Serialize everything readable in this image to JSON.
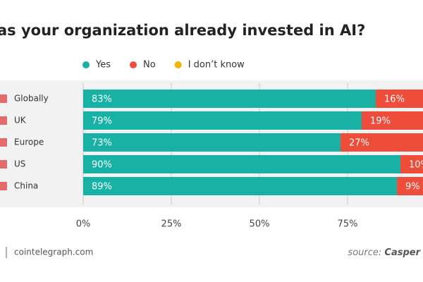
{
  "chart_data": {
    "type": "stacked-bar-horizontal",
    "title": "as your organization already invested in AI?",
    "categories": [
      "Globally",
      "UK",
      "Europe",
      "US",
      "China"
    ],
    "series": [
      {
        "name": "Yes",
        "color": "#17b2a5",
        "values": [
          83,
          79,
          73,
          90,
          89
        ],
        "value_labels": [
          "83%",
          "79%",
          "73%",
          "90%",
          "89%"
        ]
      },
      {
        "name": "No",
        "color": "#ee4d3c",
        "values": [
          16,
          19,
          27,
          10,
          9
        ],
        "value_labels": [
          "16%",
          "19%",
          "27%",
          "10%",
          "9%"
        ]
      },
      {
        "name": "I don’t know",
        "color": "#f4b400",
        "values": [
          1,
          2,
          0,
          0,
          2
        ]
      }
    ],
    "xlim": [
      0,
      100
    ],
    "xticks": [
      {
        "value": 0,
        "label": "0%"
      },
      {
        "value": 25,
        "label": "25%"
      },
      {
        "value": 50,
        "label": "50%"
      },
      {
        "value": 75,
        "label": "75%"
      }
    ],
    "grid": true,
    "legend": "top",
    "footer": "cointelegraph.com",
    "source_label": "source:",
    "source": "Casper"
  }
}
